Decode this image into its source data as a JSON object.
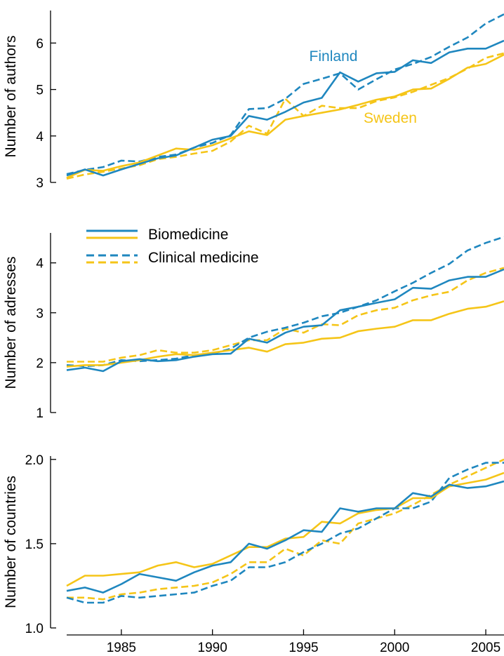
{
  "colors": {
    "finland": "#1f87bf",
    "sweden": "#f5c518",
    "axis": "#000000"
  },
  "x_ticks": [
    1985,
    1990,
    1995,
    2000,
    2005
  ],
  "legend": {
    "solid_label": "Biomedicine",
    "dashed_label": "Clinical medicine"
  },
  "chart_data": [
    {
      "type": "line",
      "ylabel": "Number of authors",
      "ylim": [
        3,
        6.7
      ],
      "yticks": [
        3,
        4,
        5,
        6
      ],
      "ytick_labels": [
        "3",
        "4",
        "5",
        "6"
      ],
      "annotations": [
        "Finland",
        "Sweden"
      ],
      "x": [
        1982,
        1983,
        1984,
        1985,
        1986,
        1987,
        1988,
        1989,
        1990,
        1991,
        1992,
        1993,
        1994,
        1995,
        1996,
        1997,
        1998,
        1999,
        2000,
        2001,
        2002,
        2003,
        2004,
        2005,
        2006
      ],
      "series": [
        {
          "name": "Finland",
          "style": "solid",
          "color": "finland",
          "values": [
            3.15,
            3.28,
            3.15,
            3.28,
            3.4,
            3.52,
            3.58,
            3.75,
            3.92,
            4.0,
            4.43,
            4.35,
            4.52,
            4.72,
            4.82,
            5.37,
            5.17,
            5.35,
            5.38,
            5.63,
            5.57,
            5.8,
            5.88,
            5.88,
            6.05
          ]
        },
        {
          "name": "Finland",
          "style": "dashed",
          "color": "finland",
          "values": [
            3.18,
            3.27,
            3.33,
            3.47,
            3.45,
            3.55,
            3.6,
            3.75,
            3.85,
            4.02,
            4.58,
            4.6,
            4.8,
            5.12,
            5.23,
            5.35,
            5.0,
            5.22,
            5.43,
            5.55,
            5.7,
            5.92,
            6.12,
            6.42,
            6.62
          ]
        },
        {
          "name": "Sweden",
          "style": "solid",
          "color": "sweden",
          "values": [
            3.1,
            3.27,
            3.25,
            3.35,
            3.43,
            3.58,
            3.73,
            3.7,
            3.8,
            3.95,
            4.1,
            4.02,
            4.35,
            4.43,
            4.5,
            4.57,
            4.67,
            4.78,
            4.85,
            5.0,
            5.02,
            5.23,
            5.47,
            5.55,
            5.75
          ]
        },
        {
          "name": "Sweden",
          "style": "dashed",
          "color": "sweden",
          "values": [
            3.08,
            3.17,
            3.23,
            3.3,
            3.37,
            3.5,
            3.55,
            3.62,
            3.68,
            3.88,
            4.22,
            4.05,
            4.8,
            4.43,
            4.65,
            4.6,
            4.6,
            4.75,
            4.83,
            4.95,
            5.1,
            5.25,
            5.45,
            5.68,
            5.78
          ]
        }
      ]
    },
    {
      "type": "line",
      "ylabel": "Number of adresses",
      "ylim": [
        1,
        4.6
      ],
      "yticks": [
        1,
        2,
        3,
        4
      ],
      "ytick_labels": [
        "1",
        "2",
        "3",
        "4"
      ],
      "x": [
        1982,
        1983,
        1984,
        1985,
        1986,
        1987,
        1988,
        1989,
        1990,
        1991,
        1992,
        1993,
        1994,
        1995,
        1996,
        1997,
        1998,
        1999,
        2000,
        2001,
        2002,
        2003,
        2004,
        2005,
        2006
      ],
      "series": [
        {
          "name": "Finland",
          "style": "solid",
          "color": "finland",
          "values": [
            1.85,
            1.9,
            1.83,
            2.03,
            2.07,
            2.03,
            2.05,
            2.12,
            2.17,
            2.18,
            2.48,
            2.4,
            2.6,
            2.72,
            2.75,
            3.05,
            3.12,
            3.2,
            3.27,
            3.5,
            3.48,
            3.65,
            3.72,
            3.72,
            3.87
          ]
        },
        {
          "name": "Finland",
          "style": "dashed",
          "color": "finland",
          "values": [
            1.95,
            1.93,
            1.95,
            2.05,
            2.03,
            2.05,
            2.08,
            2.15,
            2.18,
            2.28,
            2.5,
            2.62,
            2.7,
            2.8,
            2.93,
            3.0,
            3.12,
            3.25,
            3.43,
            3.6,
            3.8,
            3.98,
            4.25,
            4.4,
            4.52
          ]
        },
        {
          "name": "Sweden",
          "style": "solid",
          "color": "sweden",
          "values": [
            1.92,
            1.95,
            1.95,
            2.0,
            2.05,
            2.12,
            2.17,
            2.15,
            2.2,
            2.25,
            2.3,
            2.22,
            2.37,
            2.4,
            2.48,
            2.5,
            2.63,
            2.68,
            2.72,
            2.85,
            2.85,
            2.98,
            3.08,
            3.12,
            3.23
          ]
        },
        {
          "name": "Sweden",
          "style": "dashed",
          "color": "sweden",
          "values": [
            2.02,
            2.02,
            2.02,
            2.1,
            2.15,
            2.25,
            2.2,
            2.2,
            2.25,
            2.35,
            2.45,
            2.45,
            2.68,
            2.6,
            2.77,
            2.75,
            2.95,
            3.05,
            3.1,
            3.25,
            3.35,
            3.42,
            3.65,
            3.8,
            3.9
          ]
        }
      ]
    },
    {
      "type": "line",
      "ylabel": "Number of countries",
      "ylim": [
        1.0,
        2.02
      ],
      "yticks": [
        1.0,
        1.5,
        2.0
      ],
      "ytick_labels": [
        "1.0",
        "1.5",
        "2.0"
      ],
      "xticks": [
        1985,
        1990,
        1995,
        2000,
        2005
      ],
      "x": [
        1982,
        1983,
        1984,
        1985,
        1986,
        1987,
        1988,
        1989,
        1990,
        1991,
        1992,
        1993,
        1994,
        1995,
        1996,
        1997,
        1998,
        1999,
        2000,
        2001,
        2002,
        2003,
        2004,
        2005,
        2006
      ],
      "series": [
        {
          "name": "Finland",
          "style": "solid",
          "color": "finland",
          "values": [
            1.22,
            1.24,
            1.21,
            1.26,
            1.32,
            1.3,
            1.28,
            1.33,
            1.37,
            1.39,
            1.5,
            1.47,
            1.52,
            1.58,
            1.57,
            1.71,
            1.69,
            1.71,
            1.71,
            1.8,
            1.78,
            1.85,
            1.83,
            1.84,
            1.87
          ]
        },
        {
          "name": "Finland",
          "style": "dashed",
          "color": "finland",
          "values": [
            1.18,
            1.15,
            1.15,
            1.19,
            1.18,
            1.19,
            1.2,
            1.21,
            1.25,
            1.28,
            1.36,
            1.36,
            1.39,
            1.45,
            1.5,
            1.56,
            1.59,
            1.65,
            1.71,
            1.71,
            1.75,
            1.89,
            1.94,
            1.98,
            1.98
          ]
        },
        {
          "name": "Sweden",
          "style": "solid",
          "color": "sweden",
          "values": [
            1.25,
            1.31,
            1.31,
            1.32,
            1.33,
            1.37,
            1.39,
            1.36,
            1.38,
            1.43,
            1.48,
            1.48,
            1.53,
            1.54,
            1.63,
            1.62,
            1.68,
            1.7,
            1.71,
            1.77,
            1.77,
            1.84,
            1.86,
            1.88,
            1.92
          ]
        },
        {
          "name": "Sweden",
          "style": "dashed",
          "color": "sweden",
          "values": [
            1.18,
            1.18,
            1.17,
            1.2,
            1.21,
            1.23,
            1.24,
            1.25,
            1.27,
            1.32,
            1.39,
            1.39,
            1.47,
            1.43,
            1.52,
            1.5,
            1.62,
            1.65,
            1.68,
            1.73,
            1.79,
            1.85,
            1.9,
            1.95,
            2.0
          ]
        }
      ]
    }
  ]
}
